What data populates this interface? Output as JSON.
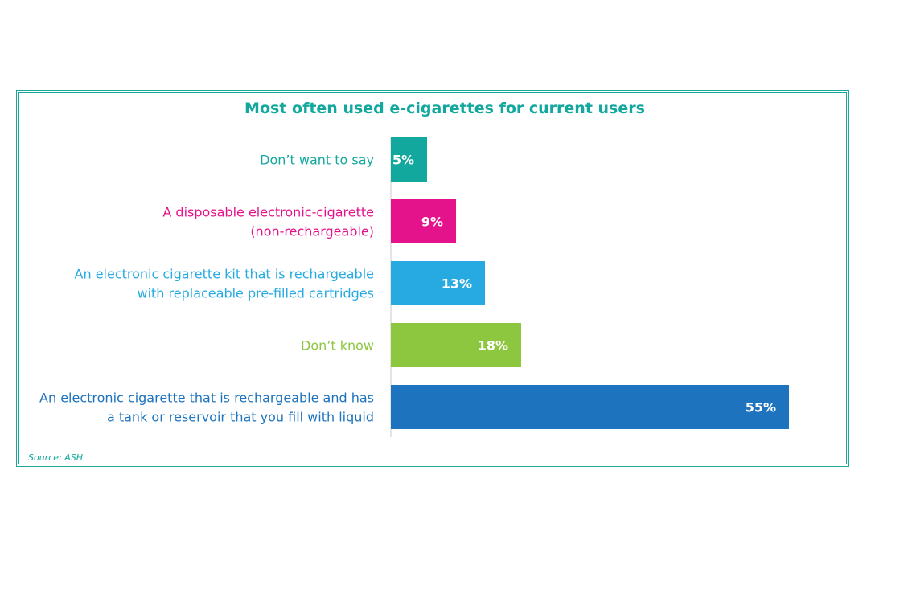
{
  "chart_data": {
    "type": "bar",
    "orientation": "horizontal",
    "title": "Most often used e-cigarettes for current users",
    "source": "Source: ASH",
    "unit": "%",
    "xlim": [
      0,
      55
    ],
    "categories": [
      [
        "Don’t want to say"
      ],
      [
        "A disposable electronic-cigarette",
        "(non-rechargeable)"
      ],
      [
        "An electronic cigarette kit that is rechargeable",
        "with replaceable pre-filled cartridges"
      ],
      [
        "Don’t know"
      ],
      [
        "An electronic cigarette that is rechargeable and has",
        "a tank or reservoir that you fill with liquid"
      ]
    ],
    "values": [
      5,
      9,
      13,
      18,
      55
    ],
    "value_labels": [
      "5%",
      "9%",
      "13%",
      "18%",
      "55%"
    ],
    "colors": [
      "#13a89e",
      "#e5138b",
      "#27aae1",
      "#8dc63f",
      "#1e73be"
    ],
    "label_colors": [
      "#13a89e",
      "#e5138b",
      "#27aae1",
      "#8dc63f",
      "#1e73be"
    ],
    "title_color": "#13a89e",
    "source_color": "#13a89e",
    "grid": false,
    "legend": "none"
  }
}
